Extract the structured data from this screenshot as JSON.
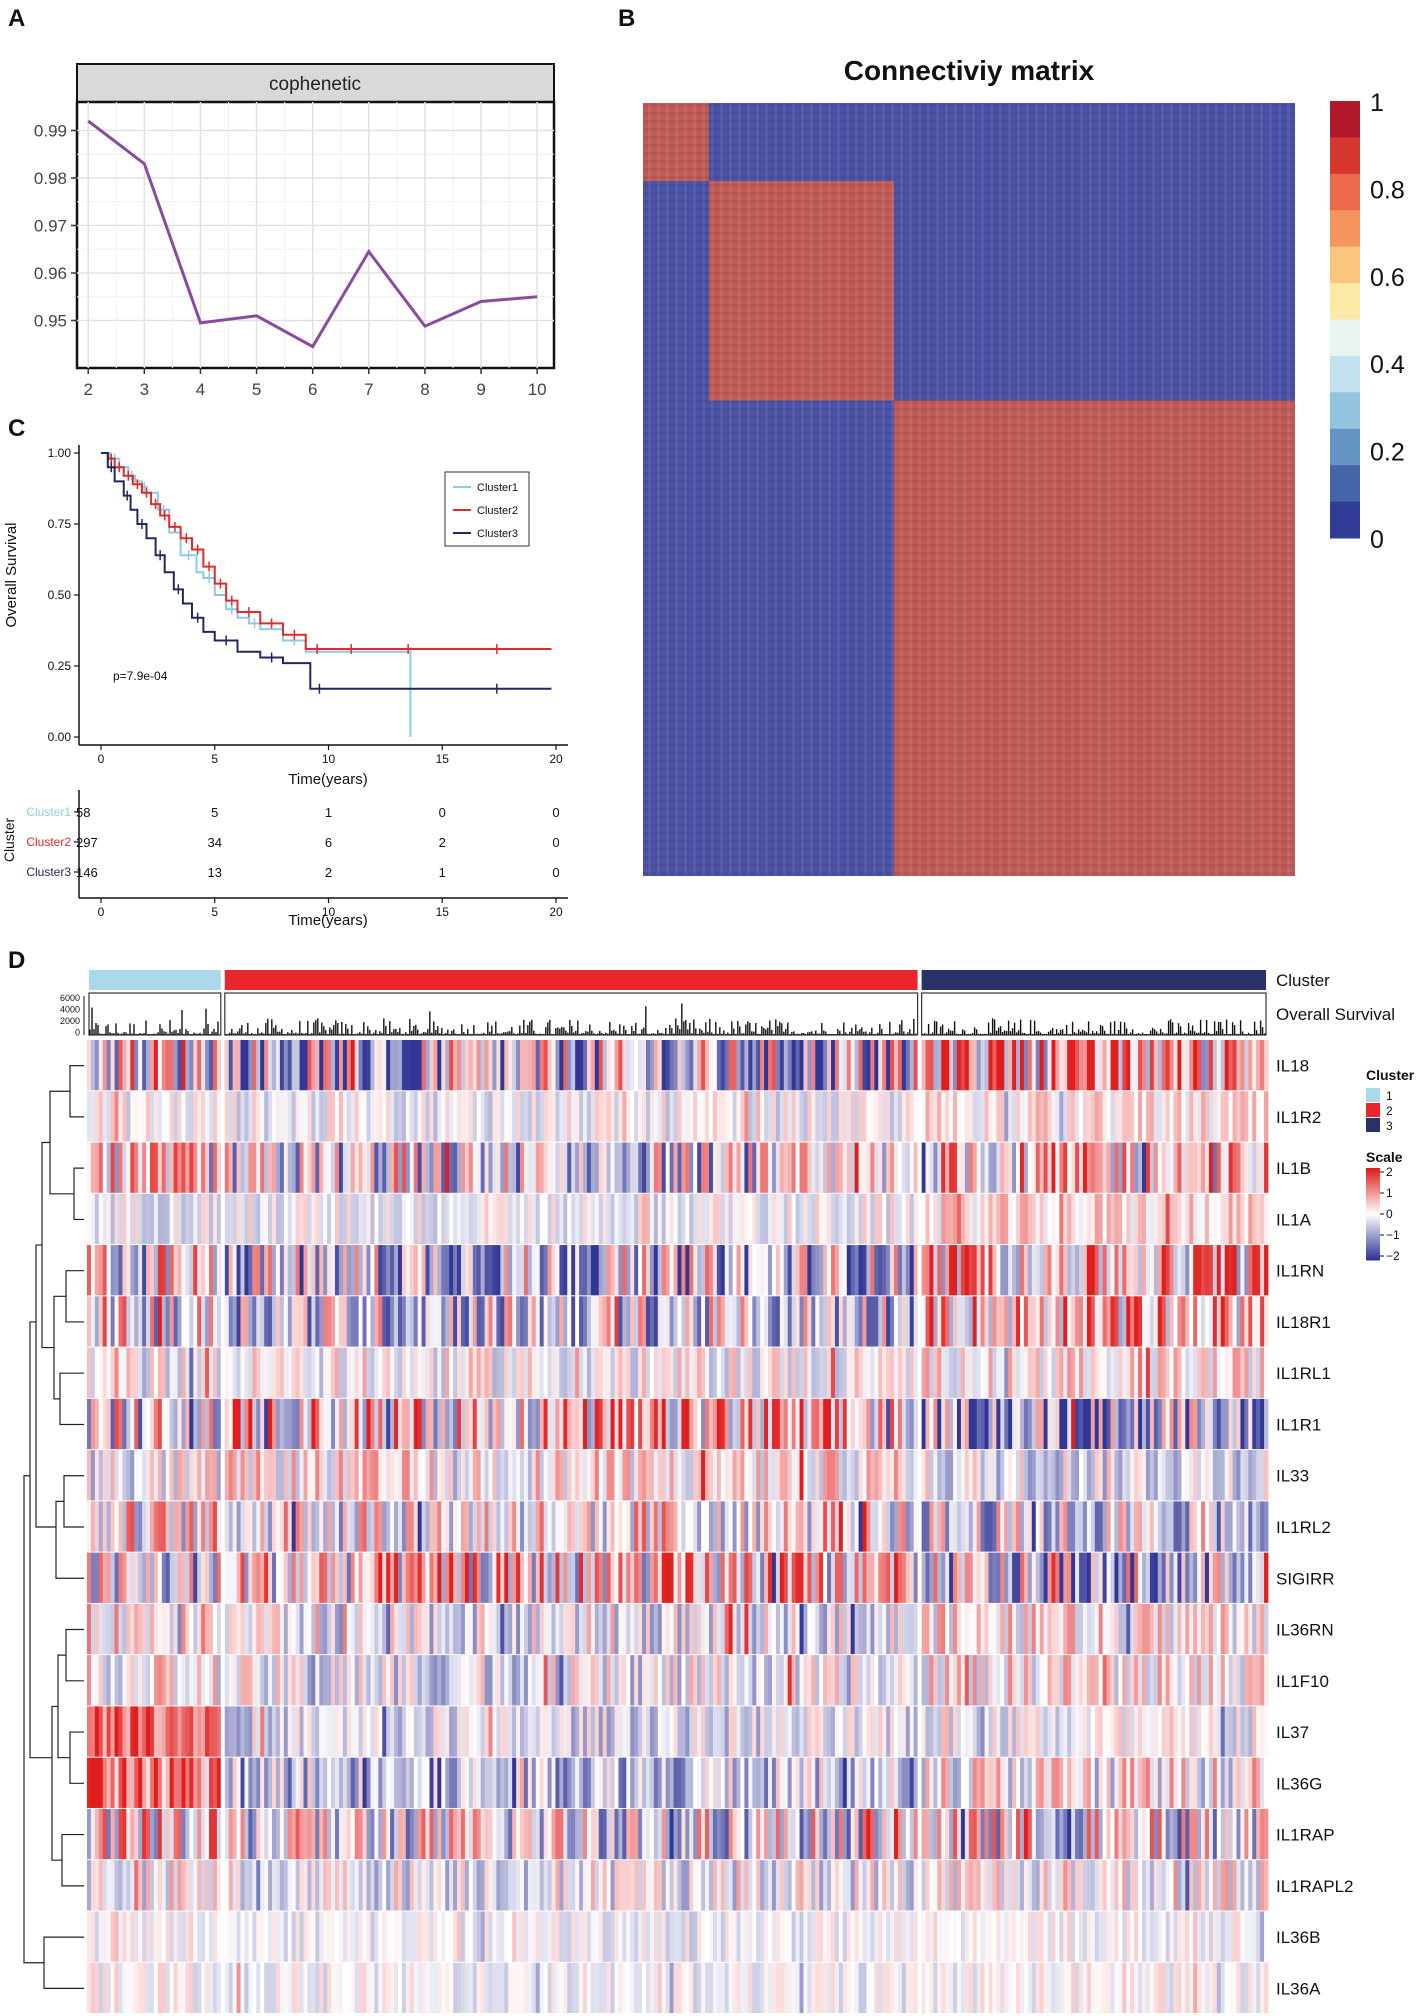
{
  "panel_labels": {
    "a": "A",
    "b": "B",
    "c": "C",
    "d": "D"
  },
  "chart_data": [
    {
      "panel": "A",
      "type": "line",
      "strip_title": "cophenetic",
      "x": [
        2,
        3,
        4,
        5,
        6,
        7,
        8,
        9,
        10
      ],
      "y": [
        0.992,
        0.983,
        0.9495,
        0.951,
        0.9445,
        0.9645,
        0.9488,
        0.954,
        0.955
      ],
      "xlim": [
        1.8,
        10.3
      ],
      "ylim": [
        0.94,
        0.996
      ],
      "x_ticks": [
        2,
        3,
        4,
        5,
        6,
        7,
        8,
        9,
        10
      ],
      "y_ticks": [
        0.95,
        0.96,
        0.97,
        0.98,
        0.99
      ],
      "line_color": "#8a4a9e"
    },
    {
      "panel": "B",
      "type": "heatmap",
      "title": "Connectiviy matrix",
      "blocks": [
        {
          "cluster": 1,
          "start": 0.0,
          "end": 0.101
        },
        {
          "cluster": 2,
          "start": 0.101,
          "end": 0.385
        },
        {
          "cluster": 3,
          "start": 0.385,
          "end": 1.0
        }
      ],
      "colorbar_ticks": [
        "1",
        "0.8",
        "0.6",
        "0.4",
        "0.2",
        "0"
      ],
      "colorbar_colors": [
        "#b2182b",
        "#d6372e",
        "#ec6a4b",
        "#f5955d",
        "#fcc57e",
        "#fde9a6",
        "#eaf4ee",
        "#c2e1ef",
        "#92c4de",
        "#6394c4",
        "#4565aa",
        "#313c98"
      ]
    },
    {
      "panel": "C",
      "type": "line",
      "subtype": "kaplan-meier",
      "ylabel": "Overall Survival",
      "xlabel": "Time(years)",
      "pvalue": "p=7.9e-04",
      "x_ticks": [
        0,
        5,
        10,
        15,
        20
      ],
      "y_ticks": [
        "0.00",
        "0.25",
        "0.50",
        "0.75",
        "1.00"
      ],
      "xlim": [
        0,
        20
      ],
      "ylim": [
        0,
        1
      ],
      "series": [
        {
          "name": "Cluster1",
          "color": "#8ecae6",
          "times": [
            0,
            0.4,
            0.8,
            1.2,
            1.5,
            1.8,
            2.0,
            2.5,
            3.0,
            3.5,
            4.2,
            4.5,
            5.0,
            5.5,
            6.0,
            6.5,
            7.0,
            8.0,
            9.0,
            13.6,
            13.6
          ],
          "surv": [
            1.0,
            0.98,
            0.95,
            0.92,
            0.9,
            0.88,
            0.86,
            0.8,
            0.72,
            0.64,
            0.58,
            0.56,
            0.5,
            0.45,
            0.42,
            0.4,
            0.38,
            0.34,
            0.3,
            0.3,
            0.0
          ]
        },
        {
          "name": "Cluster2",
          "color": "#e02b2b",
          "times": [
            0,
            0.3,
            0.6,
            1.0,
            1.4,
            1.8,
            2.2,
            2.6,
            3.0,
            3.5,
            4.0,
            4.5,
            5.0,
            5.5,
            6.0,
            7.0,
            8.0,
            9.0,
            10.0,
            12.0,
            15.0,
            19.8
          ],
          "surv": [
            1.0,
            0.98,
            0.95,
            0.92,
            0.89,
            0.86,
            0.82,
            0.78,
            0.74,
            0.7,
            0.66,
            0.6,
            0.54,
            0.48,
            0.44,
            0.4,
            0.36,
            0.31,
            0.31,
            0.31,
            0.31,
            0.31
          ]
        },
        {
          "name": "Cluster3",
          "color": "#22285e",
          "times": [
            0,
            0.3,
            0.6,
            1.0,
            1.3,
            1.6,
            2.0,
            2.4,
            2.8,
            3.2,
            3.6,
            4.0,
            4.5,
            5.0,
            6.0,
            7.0,
            8.0,
            9.2,
            10.0,
            15.0,
            19.8
          ],
          "surv": [
            1.0,
            0.95,
            0.9,
            0.85,
            0.8,
            0.75,
            0.7,
            0.64,
            0.58,
            0.52,
            0.47,
            0.42,
            0.37,
            0.34,
            0.3,
            0.28,
            0.26,
            0.17,
            0.17,
            0.17,
            0.17
          ]
        }
      ],
      "risk_table": {
        "title": "Cluster",
        "xlabel": "Time(years)",
        "rows": [
          {
            "name": "Cluster1",
            "color": "#8ecae6",
            "values": [
              "58",
              "5",
              "1",
              "0",
              "0"
            ]
          },
          {
            "name": "Cluster2",
            "color": "#e02b2b",
            "values": [
              "297",
              "34",
              "6",
              "2",
              "0"
            ]
          },
          {
            "name": "Cluster3",
            "color": "#22285e",
            "values": [
              "146",
              "13",
              "2",
              "1",
              "0"
            ]
          }
        ]
      }
    },
    {
      "panel": "D",
      "type": "heatmap",
      "annotation_labels": [
        "Cluster",
        "Overall Survival"
      ],
      "os_ticks": [
        "6000",
        "4000",
        "2000",
        "0"
      ],
      "clusters": [
        {
          "id": "1",
          "color": "#a8d8ea",
          "start": 0.0,
          "end": 0.115
        },
        {
          "id": "2",
          "color": "#e8262b",
          "start": 0.115,
          "end": 0.705
        },
        {
          "id": "3",
          "color": "#283268",
          "start": 0.705,
          "end": 1.0
        }
      ],
      "genes": [
        "IL18",
        "IL1R2",
        "IL1B",
        "IL1A",
        "IL1RN",
        "IL18R1",
        "IL1RL1",
        "IL1R1",
        "IL33",
        "IL1RL2",
        "SIGIRR",
        "IL36RN",
        "IL1F10",
        "IL37",
        "IL36G",
        "IL1RAP",
        "IL1RAPL2",
        "IL36B",
        "IL36A"
      ],
      "legend": {
        "cluster_title": "Cluster",
        "cluster_items": [
          "1",
          "2",
          "3"
        ],
        "scale_title": "Scale",
        "scale_ticks": [
          "2",
          "1",
          "0",
          "−1",
          "−2"
        ]
      }
    }
  ]
}
